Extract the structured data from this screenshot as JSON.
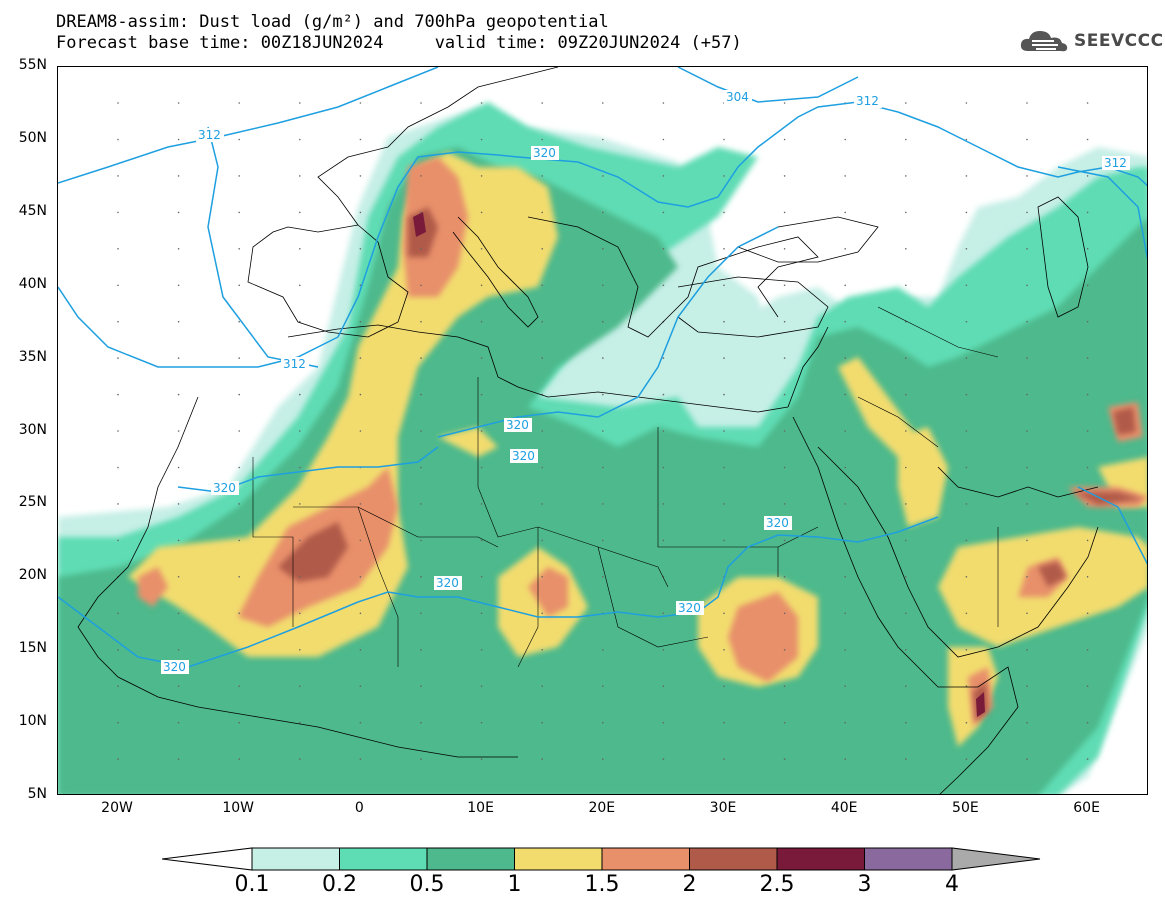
{
  "title_line1": "DREAM8-assim: Dust load (g/m²) and 700hPa geopotential",
  "title_line2": "Forecast base time: 00Z18JUN2024     valid time: 09Z20JUN2024 (+57)",
  "logo_text": "SEEVCCC",
  "lat_labels": [
    "55N",
    "50N",
    "45N",
    "40N",
    "35N",
    "30N",
    "25N",
    "20N",
    "15N",
    "10N",
    "5N"
  ],
  "lon_labels": [
    "20W",
    "10W",
    "0",
    "10E",
    "20E",
    "30E",
    "40E",
    "50E",
    "60E"
  ],
  "contour_labels": [
    "304",
    "312",
    "312",
    "312",
    "312",
    "320",
    "320",
    "320",
    "320",
    "320",
    "320",
    "320",
    "320"
  ],
  "colorbar": {
    "levels": [
      "0.1",
      "0.2",
      "0.5",
      "1",
      "1.5",
      "2",
      "2.5",
      "3",
      "4"
    ],
    "colors": [
      "#c6efe6",
      "#5edcb4",
      "#4db98c",
      "#f2dc6e",
      "#e8906a",
      "#b05a4a",
      "#7a1a3a",
      "#8a6a9e",
      "#aaaaaa"
    ]
  },
  "colors": {
    "contour": "#1e9fe0",
    "coast": "#000000",
    "background": "#ffffff"
  }
}
